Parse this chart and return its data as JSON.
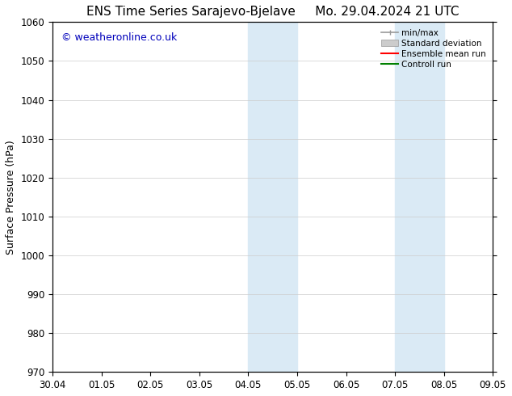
{
  "title_left": "ENS Time Series Sarajevo-Bjelave",
  "title_right": "Mo. 29.04.2024 21 UTC",
  "ylabel": "Surface Pressure (hPa)",
  "watermark": "© weatheronline.co.uk",
  "watermark_color": "#0000bb",
  "background_color": "#ffffff",
  "plot_bg_color": "#ffffff",
  "ylim": [
    970,
    1060
  ],
  "yticks": [
    970,
    980,
    990,
    1000,
    1010,
    1020,
    1030,
    1040,
    1050,
    1060
  ],
  "xtick_labels": [
    "30.04",
    "01.05",
    "02.05",
    "03.05",
    "04.05",
    "05.05",
    "06.05",
    "07.05",
    "08.05",
    "09.05"
  ],
  "shaded_bands": [
    {
      "xstart": 4.0,
      "xend": 5.0
    },
    {
      "xstart": 7.0,
      "xend": 8.0
    }
  ],
  "shade_color": "#daeaf5",
  "legend_labels": [
    "min/max",
    "Standard deviation",
    "Ensemble mean run",
    "Controll run"
  ],
  "legend_colors": [
    "#999999",
    "#cccccc",
    "#ff0000",
    "#008000"
  ],
  "title_fontsize": 11,
  "axis_fontsize": 9,
  "tick_fontsize": 8.5,
  "watermark_fontsize": 9
}
